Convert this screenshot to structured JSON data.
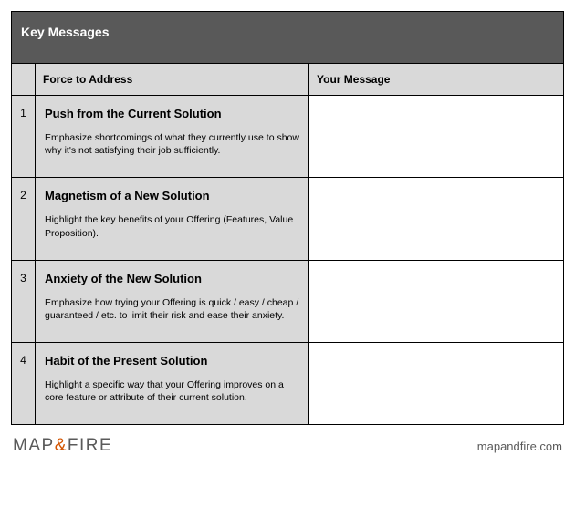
{
  "title": "Key Messages",
  "columns": {
    "force": "Force to Address",
    "message": "Your Message"
  },
  "rows": [
    {
      "num": "1",
      "force_title": "Push from the Current Solution",
      "force_desc": "Emphasize shortcomings of what they currently use to show why it's not satisfying their job sufficiently.",
      "message": ""
    },
    {
      "num": "2",
      "force_title": "Magnetism of a New Solution",
      "force_desc": "Highlight the key benefits of your Offering (Features, Value Proposition).",
      "message": ""
    },
    {
      "num": "3",
      "force_title": "Anxiety of the New Solution",
      "force_desc": "Emphasize how trying your Offering is quick / easy / cheap / guaranteed / etc. to limit their risk and ease their anxiety.",
      "message": ""
    },
    {
      "num": "4",
      "force_title": "Habit of the Present Solution",
      "force_desc": "Highlight a specific way that your Offering improves on a core feature or attribute of their current solution.",
      "message": ""
    }
  ],
  "footer": {
    "logo_map": "MAP",
    "logo_amp": "&",
    "logo_fire": "FIRE",
    "url": "mapandfire.com"
  },
  "colors": {
    "title_bg": "#595959",
    "header_bg": "#d9d9d9",
    "cell_bg": "#d9d9d9",
    "border": "#000000",
    "logo_gray": "#5a5a5a",
    "logo_orange": "#d35400"
  }
}
